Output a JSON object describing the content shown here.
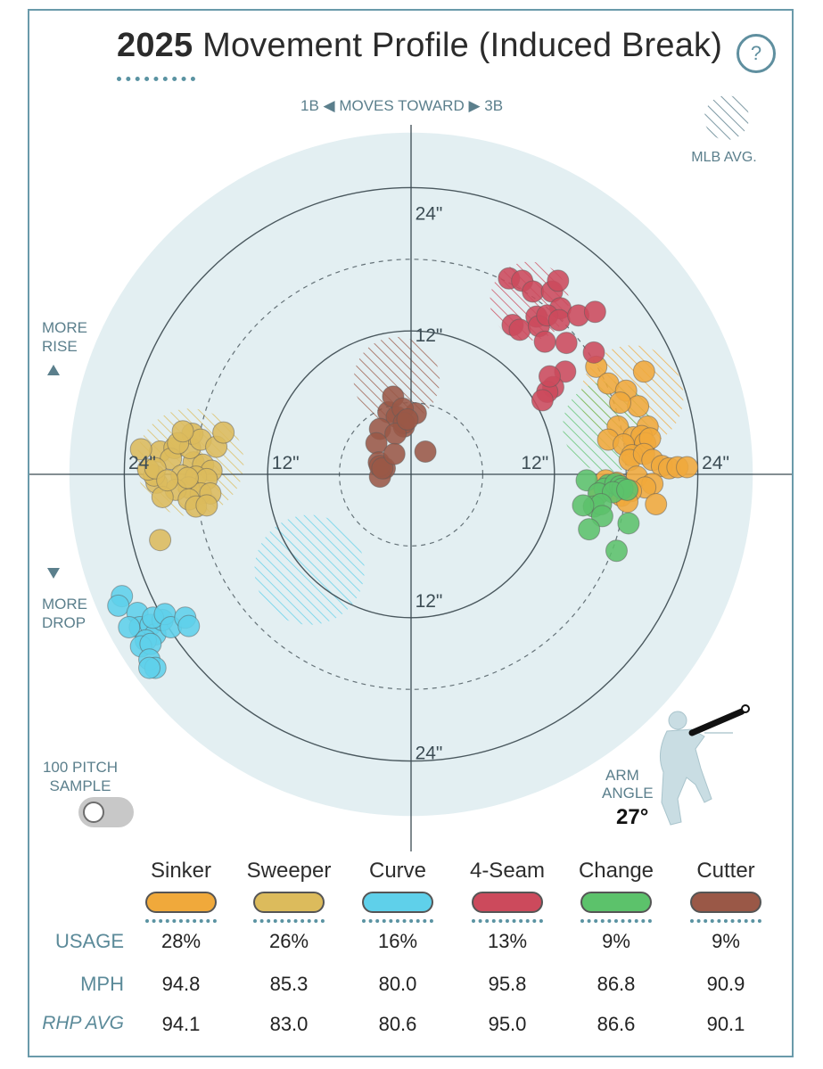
{
  "header": {
    "title_year": "2025",
    "title_rest": " Movement Profile (Induced Break)",
    "help_label": "?"
  },
  "chart_data": {
    "type": "scatter",
    "title": "2025 Movement Profile (Induced Break)",
    "xlabel": "1B ◀  MOVES TOWARD  ▶ 3B",
    "ylabel_top": "MORE RISE",
    "ylabel_bottom": "MORE DROP",
    "xlim": [
      -30,
      30
    ],
    "ylim": [
      -30,
      30
    ],
    "grid": true,
    "ring_labels": [
      "24\"",
      "12\"",
      "12\"",
      "24\"",
      "24\"",
      "12\"",
      "12\"",
      "24\""
    ],
    "ring_radii": [
      6,
      12,
      18,
      24
    ],
    "legend_avg": "MLB AVG.",
    "series": [
      {
        "name": "Sinker",
        "color": "#f0a93b",
        "avg": {
          "x": 18.5,
          "y": 6.5,
          "r": 4.3
        },
        "points": [
          [
            15.5,
            9
          ],
          [
            16.5,
            7.6
          ],
          [
            18,
            7
          ],
          [
            19.5,
            8.6
          ],
          [
            19,
            5.7
          ],
          [
            17.5,
            6
          ],
          [
            17.3,
            4
          ],
          [
            19.8,
            4
          ],
          [
            18.6,
            3.1
          ],
          [
            19.3,
            3.2
          ],
          [
            19.6,
            2.6
          ],
          [
            20,
            3
          ],
          [
            16.5,
            2.9
          ],
          [
            17.8,
            2.5
          ],
          [
            18.5,
            1.6
          ],
          [
            18.3,
            1.2
          ],
          [
            19.5,
            1.7
          ],
          [
            20.2,
            1.2
          ],
          [
            21,
            0.7
          ],
          [
            21.6,
            0.5
          ],
          [
            22.3,
            0.6
          ],
          [
            23.1,
            0.6
          ],
          [
            17.2,
            -0.7
          ],
          [
            18.9,
            -0.2
          ],
          [
            16.9,
            -1.2
          ],
          [
            17.6,
            -1.8
          ],
          [
            20.2,
            -0.8
          ],
          [
            19.6,
            -1.1
          ],
          [
            18.4,
            -1.4
          ],
          [
            20.5,
            -2.5
          ],
          [
            18.1,
            -2.3
          ],
          [
            15.8,
            -1.5
          ],
          [
            16.3,
            -0.5
          ]
        ]
      },
      {
        "name": "Sweeper",
        "color": "#dcbb5c",
        "avg": {
          "x": -18.5,
          "y": 1.0,
          "r": 4.5
        },
        "points": [
          [
            -21,
            1.9
          ],
          [
            -19.8,
            2.2
          ],
          [
            -22.6,
            2.1
          ],
          [
            -20.1,
            1.3
          ],
          [
            -18.2,
            1.0
          ],
          [
            -17.4,
            0.8
          ],
          [
            -16.7,
            0.3
          ],
          [
            -19.2,
            -0.1
          ],
          [
            -18.0,
            -0.2
          ],
          [
            -17.1,
            -0.4
          ],
          [
            -18.6,
            -1.1
          ],
          [
            -19.7,
            -1.3
          ],
          [
            -21.3,
            -0.7
          ],
          [
            -21.5,
            -0.1
          ],
          [
            -22,
            0.4
          ],
          [
            -17.6,
            -1.6
          ],
          [
            -16.8,
            -1.6
          ],
          [
            -18.5,
            2.2
          ],
          [
            -18.3,
            3.4
          ],
          [
            -17.6,
            2.9
          ],
          [
            -16.3,
            2.3
          ],
          [
            -15.7,
            3.5
          ],
          [
            -18.6,
            -2.1
          ],
          [
            -18.0,
            -2.7
          ],
          [
            -17.1,
            -2.6
          ],
          [
            -19.5,
            2.6
          ],
          [
            -20.8,
            -1.9
          ],
          [
            -19.1,
            3.6
          ],
          [
            -18.7,
            -0.3
          ],
          [
            -21.4,
            0.5
          ],
          [
            -20.4,
            -0.5
          ],
          [
            -21.0,
            -5.5
          ]
        ]
      },
      {
        "name": "Curve",
        "color": "#5fd0ea",
        "avg": {
          "x": -8.5,
          "y": -8.0,
          "r": 4.6
        },
        "points": [
          [
            -24.2,
            -10.2
          ],
          [
            -24.5,
            -11.0
          ],
          [
            -22.9,
            -11.6
          ],
          [
            -22.7,
            -12.8
          ],
          [
            -23.6,
            -12.8
          ],
          [
            -21.8,
            -12.6
          ],
          [
            -21.4,
            -13.4
          ],
          [
            -20.8,
            -12.2
          ],
          [
            -21.6,
            -12.0
          ],
          [
            -20.6,
            -11.7
          ],
          [
            -20.1,
            -12.8
          ],
          [
            -18.9,
            -12.0
          ],
          [
            -18.6,
            -12.7
          ],
          [
            -22.2,
            -13.9
          ],
          [
            -22.6,
            -14.4
          ],
          [
            -21.8,
            -14.2
          ],
          [
            -21.9,
            -15.5
          ],
          [
            -21.4,
            -16.2
          ],
          [
            -21.9,
            -16.2
          ]
        ]
      },
      {
        "name": "4-Seam",
        "color": "#cc4a5c",
        "avg": {
          "x": 9.9,
          "y": 14.5,
          "r": 3.3
        },
        "points": [
          [
            8.2,
            16.4
          ],
          [
            9.3,
            16.2
          ],
          [
            10.2,
            15.3
          ],
          [
            11.8,
            15.3
          ],
          [
            12.3,
            16.2
          ],
          [
            12.5,
            13.9
          ],
          [
            10.5,
            13.2
          ],
          [
            8.5,
            12.5
          ],
          [
            9.1,
            12.1
          ],
          [
            10.7,
            12.4
          ],
          [
            11.4,
            13.3
          ],
          [
            12.4,
            12.9
          ],
          [
            14.0,
            13.3
          ],
          [
            15.4,
            13.6
          ],
          [
            11.2,
            11.1
          ],
          [
            13.0,
            11.0
          ],
          [
            15.3,
            10.2
          ],
          [
            12.9,
            8.6
          ],
          [
            11.9,
            7.3
          ],
          [
            11.4,
            6.9
          ],
          [
            11.0,
            6.2
          ],
          [
            11.6,
            8.2
          ]
        ]
      },
      {
        "name": "Change",
        "color": "#5cc26b",
        "avg": {
          "x": 16.5,
          "y": 4.0,
          "r": 3.8
        },
        "points": [
          [
            14.7,
            -0.5
          ],
          [
            16.5,
            -0.9
          ],
          [
            16.2,
            -1.2
          ],
          [
            15.7,
            -1.6
          ],
          [
            17.1,
            -0.8
          ],
          [
            17.5,
            -1.0
          ],
          [
            17.7,
            -1.2
          ],
          [
            16.9,
            -1.5
          ],
          [
            18.1,
            -1.3
          ],
          [
            15.3,
            -2.7
          ],
          [
            15.9,
            -2.5
          ],
          [
            14.4,
            -2.6
          ],
          [
            16.0,
            -3.5
          ],
          [
            18.2,
            -4.1
          ],
          [
            17.2,
            -6.4
          ],
          [
            14.9,
            -4.6
          ]
        ]
      },
      {
        "name": "Cutter",
        "color": "#9a5847",
        "avg": {
          "x": -1.2,
          "y": 7.9,
          "r": 3.6
        },
        "points": [
          [
            -1.9,
            5.2
          ],
          [
            -1.5,
            6.5
          ],
          [
            0.4,
            5.1
          ],
          [
            -1.2,
            4.8
          ],
          [
            -0.6,
            4.0
          ],
          [
            -0.7,
            5.5
          ],
          [
            -0.6,
            4.3
          ],
          [
            -2.6,
            3.8
          ],
          [
            -1.3,
            3.4
          ],
          [
            -2.9,
            2.6
          ],
          [
            1.2,
            1.9
          ],
          [
            -2.2,
            0.5
          ],
          [
            -2.7,
            1.0
          ],
          [
            -2.6,
            -0.2
          ],
          [
            -2.6,
            0.7
          ],
          [
            -2.4,
            0.5
          ],
          [
            -0.3,
            4.6
          ],
          [
            -1.4,
            1.7
          ]
        ]
      }
    ]
  },
  "side_labels": {
    "rise_1": "MORE",
    "rise_2": "RISE",
    "drop_1": "MORE",
    "drop_2": "DROP",
    "sample_1": "100 PITCH",
    "sample_2": "SAMPLE",
    "arm_1": "ARM",
    "arm_2": "ANGLE",
    "arm_value": "27°"
  },
  "arm_angle": {
    "degrees": 27
  },
  "sample_toggle": {
    "on": false
  },
  "legend": {
    "row_labels": [
      "USAGE",
      "MPH",
      "RHP AVG"
    ],
    "pitches": [
      {
        "name": "Sinker",
        "color": "#f0a93b",
        "usage": "28%",
        "mph": "94.8",
        "rhp_avg": "94.1"
      },
      {
        "name": "Sweeper",
        "color": "#dcbb5c",
        "usage": "26%",
        "mph": "85.3",
        "rhp_avg": "83.0"
      },
      {
        "name": "Curve",
        "color": "#5fd0ea",
        "usage": "16%",
        "mph": "80.0",
        "rhp_avg": "80.6"
      },
      {
        "name": "4-Seam",
        "color": "#cc4a5c",
        "usage": "13%",
        "mph": "95.8",
        "rhp_avg": "95.0"
      },
      {
        "name": "Change",
        "color": "#5cc26b",
        "usage": "9%",
        "mph": "86.8",
        "rhp_avg": "86.6"
      },
      {
        "name": "Cutter",
        "color": "#9a5847",
        "usage": "9%",
        "mph": "90.9",
        "rhp_avg": "90.1"
      }
    ]
  }
}
